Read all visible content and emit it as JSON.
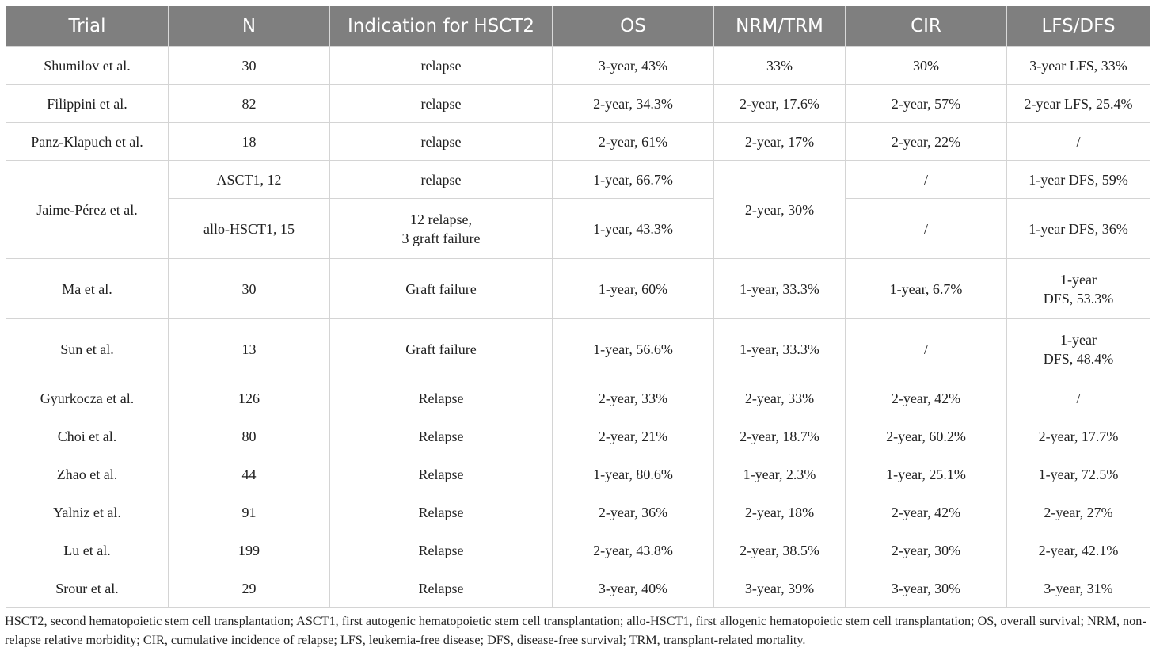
{
  "headers": [
    "Trial",
    "N",
    "Indication for HSCT2",
    "OS",
    "NRM/TRM",
    "CIR",
    "LFS/DFS"
  ],
  "rows": [
    {
      "trial": "Shumilov et al.",
      "n": "30",
      "indication": "relapse",
      "os": "3-year, 43%",
      "nrm": "33%",
      "cir": "30%",
      "lfs": "3-year LFS, 33%"
    },
    {
      "trial": "Filippini et al.",
      "n": "82",
      "indication": "relapse",
      "os": "2-year, 34.3%",
      "nrm": "2-year, 17.6%",
      "cir": "2-year, 57%",
      "lfs": "2-year LFS, 25.4%"
    },
    {
      "trial": "Panz-Klapuch et al.",
      "n": "18",
      "indication": "relapse",
      "os": "2-year, 61%",
      "nrm": "2-year, 17%",
      "cir": "2-year, 22%",
      "lfs": "/"
    },
    {
      "trial": "Jaime-Pérez et al.",
      "n": "ASCT1, 12",
      "indication": "relapse",
      "os": "1-year, 66.7%",
      "nrm": "2-year, 30%",
      "cir": "/",
      "lfs": "1-year DFS, 59%"
    },
    {
      "n": "allo-HSCT1, 15",
      "indication": "12 relapse,\n3 graft failure",
      "os": "1-year, 43.3%",
      "cir": "/",
      "lfs": "1-year DFS, 36%"
    },
    {
      "trial": "Ma et al.",
      "n": "30",
      "indication": "Graft failure",
      "os": "1-year, 60%",
      "nrm": "1-year, 33.3%",
      "cir": "1-year, 6.7%",
      "lfs": "1-year\nDFS, 53.3%"
    },
    {
      "trial": "Sun et al.",
      "n": "13",
      "indication": "Graft failure",
      "os": "1-year, 56.6%",
      "nrm": "1-year, 33.3%",
      "cir": "/",
      "lfs": "1-year\nDFS, 48.4%"
    },
    {
      "trial": "Gyurkocza et al.",
      "n": "126",
      "indication": "Relapse",
      "os": "2-year, 33%",
      "nrm": "2-year, 33%",
      "cir": "2-year, 42%",
      "lfs": "/"
    },
    {
      "trial": "Choi et al.",
      "n": "80",
      "indication": "Relapse",
      "os": "2-year, 21%",
      "nrm": "2-year, 18.7%",
      "cir": "2-year, 60.2%",
      "lfs": "2-year, 17.7%"
    },
    {
      "trial": "Zhao et al.",
      "n": "44",
      "indication": "Relapse",
      "os": "1-year, 80.6%",
      "nrm": "1-year, 2.3%",
      "cir": "1-year, 25.1%",
      "lfs": "1-year, 72.5%"
    },
    {
      "trial": "Yalniz et al.",
      "n": "91",
      "indication": "Relapse",
      "os": "2-year, 36%",
      "nrm": "2-year, 18%",
      "cir": "2-year, 42%",
      "lfs": "2-year, 27%"
    },
    {
      "trial": "Lu et al.",
      "n": "199",
      "indication": "Relapse",
      "os": "2-year, 43.8%",
      "nrm": "2-year, 38.5%",
      "cir": "2-year, 30%",
      "lfs": "2-year, 42.1%"
    },
    {
      "trial": "Srour et al.",
      "n": "29",
      "indication": "Relapse",
      "os": "3-year, 40%",
      "nrm": "3-year, 39%",
      "cir": "3-year, 30%",
      "lfs": "3-year, 31%"
    }
  ],
  "footnote": "HSCT2, second hematopoietic stem cell transplantation; ASCT1, first autogenic hematopoietic stem cell transplantation; allo-HSCT1, first allogenic hematopoietic stem cell transplantation; OS, overall survival; NRM, non-relapse relative morbidity; CIR, cumulative incidence of relapse; LFS, leukemia-free disease; DFS, disease-free survival; TRM, transplant-related mortality."
}
